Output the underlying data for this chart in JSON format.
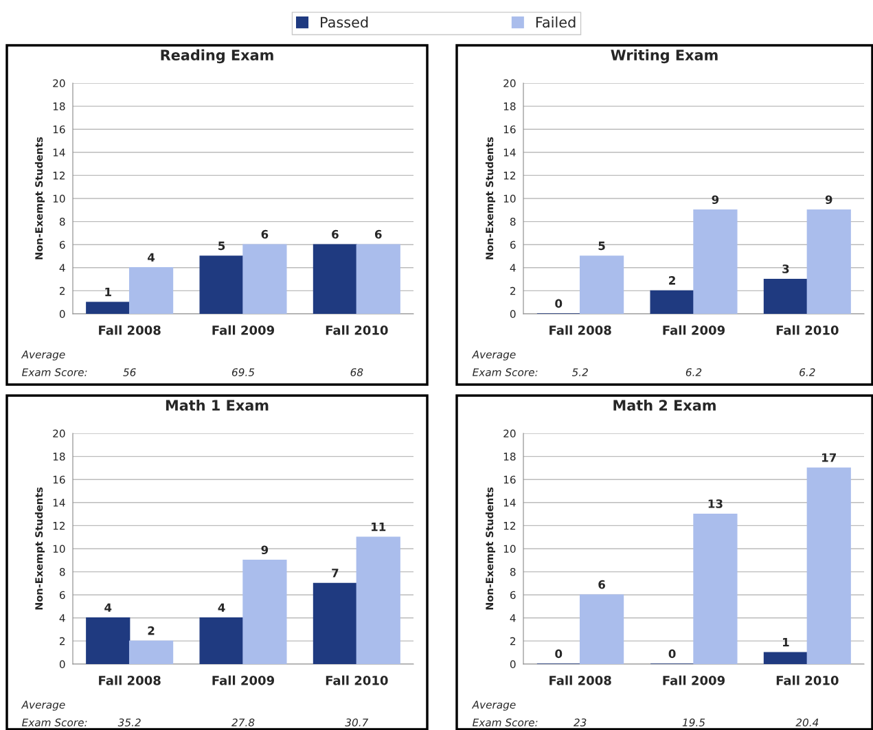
{
  "chart_data": [
    {
      "type": "bar",
      "title": "Reading Exam",
      "ylabel": "Non-Exempt Students",
      "categories": [
        "Fall 2008",
        "Fall 2009",
        "Fall 2010"
      ],
      "series": [
        {
          "name": "Passed",
          "color": "#1f3a80",
          "values": [
            1,
            5,
            6
          ]
        },
        {
          "name": "Failed",
          "color": "#aabdec",
          "values": [
            4,
            6,
            6
          ]
        }
      ],
      "ylim": [
        0,
        20
      ],
      "yticks": [
        0,
        2,
        4,
        6,
        8,
        10,
        12,
        14,
        16,
        18,
        20
      ],
      "grid": "y",
      "data_labels": true,
      "legend": "top",
      "annotations": [
        "Average",
        "Exam Score:",
        "56",
        "69.5",
        "68"
      ]
    },
    {
      "type": "bar",
      "title": "Writing Exam",
      "ylabel": "Non-Exempt Students",
      "categories": [
        "Fall 2008",
        "Fall 2009",
        "Fall 2010"
      ],
      "series": [
        {
          "color": "#1f3a80",
          "values": [
            0,
            2,
            3
          ]
        },
        {
          "color": "#aabdec",
          "values": [
            5,
            9,
            9
          ]
        }
      ],
      "ylim": [
        0,
        20
      ],
      "yticks": [
        0,
        2,
        4,
        6,
        8,
        10,
        12,
        14,
        16,
        18,
        20
      ],
      "grid": "y",
      "data_labels": true,
      "annotations": [
        "Average",
        "Exam Score:",
        "5.2",
        "6.2",
        "6.2"
      ]
    },
    {
      "type": "bar",
      "title": "Math 1 Exam",
      "ylabel": "Non-Exempt Students",
      "categories": [
        "Fall 2008",
        "Fall 2009",
        "Fall 2010"
      ],
      "series": [
        {
          "color": "#1f3a80",
          "values": [
            4,
            4,
            7
          ]
        },
        {
          "color": "#aabdec",
          "values": [
            2,
            9,
            11
          ]
        }
      ],
      "ylim": [
        0,
        20
      ],
      "yticks": [
        0,
        2,
        4,
        6,
        8,
        10,
        12,
        14,
        16,
        18,
        20
      ],
      "grid": "y",
      "data_labels": true,
      "annotations": [
        "Average",
        "Exam Score:",
        "35.2",
        "27.8",
        "30.7"
      ]
    },
    {
      "type": "bar",
      "title": "Math 2 Exam",
      "ylabel": "Non-Exempt Students",
      "categories": [
        "Fall 2008",
        "Fall 2009",
        "Fall 2010"
      ],
      "series": [
        {
          "color": "#1f3a80",
          "values": [
            0,
            0,
            1
          ]
        },
        {
          "color": "#aabdec",
          "values": [
            6,
            13,
            17
          ]
        }
      ],
      "ylim": [
        0,
        20
      ],
      "yticks": [
        0,
        2,
        4,
        6,
        8,
        10,
        12,
        14,
        16,
        18,
        20
      ],
      "grid": "y",
      "data_labels": true,
      "annotations": [
        "Average",
        "Exam Score:",
        "23",
        "19.5",
        "20.4"
      ]
    }
  ]
}
